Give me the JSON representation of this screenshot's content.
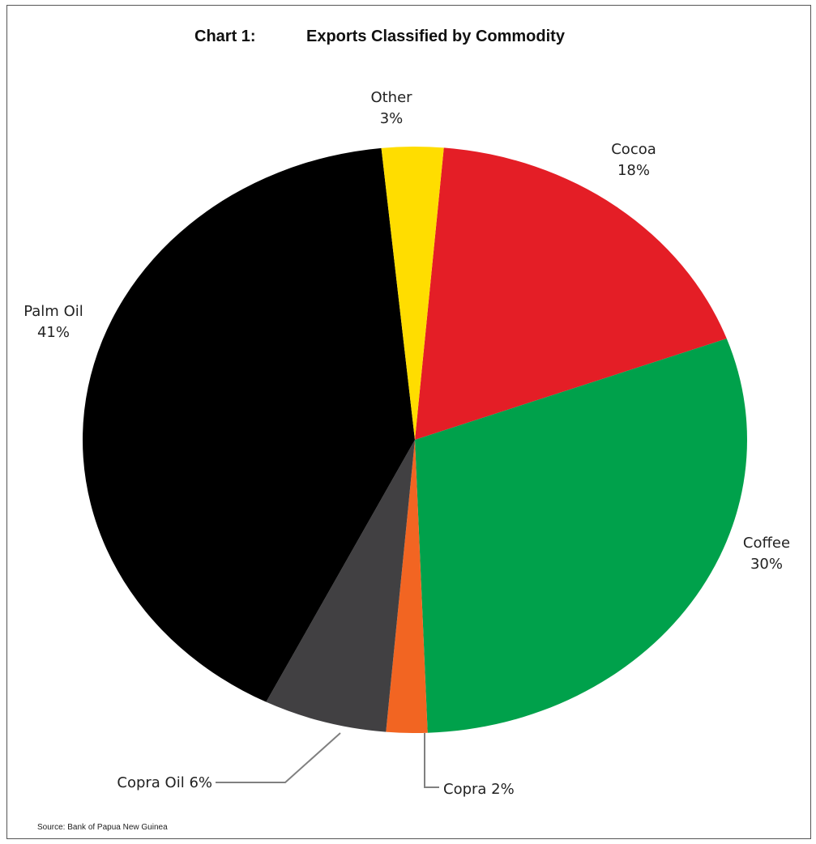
{
  "chart_data": {
    "type": "pie",
    "title_number": "Chart 1:",
    "title": "Exports Classified by Commodity",
    "source": "Source: Bank of Papua New Guinea",
    "slices": [
      {
        "name": "Cocoa",
        "label": "Cocoa",
        "pct_text": "18%",
        "value": 18,
        "color": "#e41e26"
      },
      {
        "name": "Coffee",
        "label": "Coffee",
        "pct_text": "30%",
        "value": 30,
        "color": "#00a14b"
      },
      {
        "name": "Copra",
        "label": "Copra 2%",
        "pct_text": "",
        "value": 2,
        "color": "#f26522"
      },
      {
        "name": "Copra Oil",
        "label": "Copra Oil 6%",
        "pct_text": "",
        "value": 6,
        "color": "#414042"
      },
      {
        "name": "Palm Oil",
        "label": "Palm Oil",
        "pct_text": "41%",
        "value": 41,
        "color": "#000000"
      },
      {
        "name": "Other",
        "label": "Other",
        "pct_text": "3%",
        "value": 3,
        "color": "#ffdd00"
      }
    ]
  }
}
